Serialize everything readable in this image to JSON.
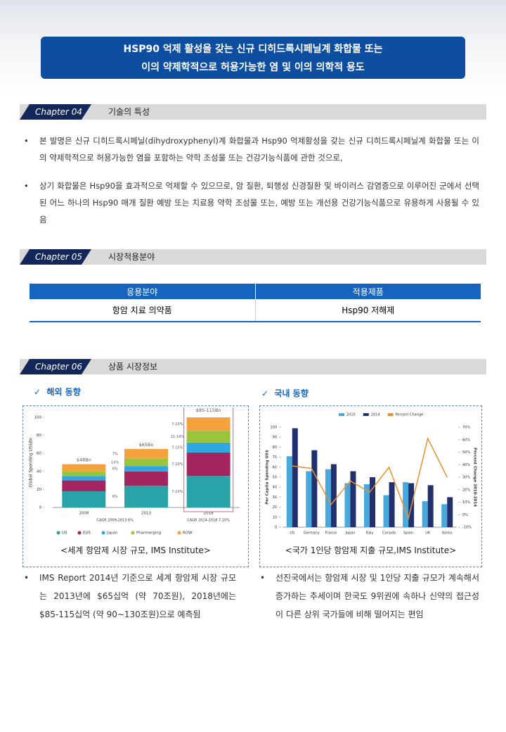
{
  "header": {
    "title": [
      "HSP90 억제 활성을 갖는 신규 디히드록시페닐계 화합물 또는",
      "이의 약제학적으로 허용가능한 염 및 이의 의학적 용도"
    ]
  },
  "sections": [
    {
      "chapter": "Chapter 04",
      "title": "기술의 특성",
      "bullets": [
        "본 발명은 신규 디히드록시페닐(dihydroxyphenyl)계 화합물과 Hsp90 억제활성을 갖는 신규 디히드록시페닐계 화합물 또는 이의 약제학적으로 허용가능한 염을 포함하는 약학 조성물 또는 건강기능식품에 관한 것으로,",
        "상기 화합물은 Hsp90을 효과적으로 억제할 수 있으므로, 암 질환, 퇴행성 신경질환 및 바이러스 감염증으로 이루어진 군에서 선택된 어느 하나의 Hsp90 매개 질환 예방 또는 치료용 약학 조성물 또는, 예방 또는 개선용 건강기능식품으로 유용하게 사용될 수 있음"
      ]
    },
    {
      "chapter": "Chapter 05",
      "title": "시장적용분야",
      "table": {
        "header": [
          "응용분야",
          "적용제품"
        ],
        "rows": [
          [
            "항암 치료 의약품",
            "Hsp90 저해제"
          ]
        ]
      }
    },
    {
      "chapter": "Chapter 06",
      "title": "상품 시장정보",
      "left": {
        "subtitle": "해외 동향",
        "caption": "<세계 항암제 시장 규모, IMS Institute>",
        "bullet": "IMS Report 2014년 기준으로 세계 항암제 시장 규모는 2013년에 $65십억 (약 70조원), 2018년에는 $85-115십억 (약 90~130조원)으로 예측됨"
      },
      "right": {
        "subtitle": "국내 동향",
        "caption": "<국가 1인당 항암제 지출 규모,IMS Institute>",
        "bullet": "선진국에서는 항암제 시장 및 1인당 지출 규모가 계속해서 증가하는 추세이며 한국도 9위권에 속하나 신약의 접근성이 다른 상위 국가들에 비해 떨어지는 편임"
      }
    }
  ],
  "chart_data": [
    {
      "type": "stacked_bar",
      "y_label": "Global Spending US$Bn",
      "categories": [
        "2008",
        "2013",
        "2018"
      ],
      "series": [
        {
          "name": "US",
          "color": "#2aa3a8",
          "values": [
            18,
            24,
            35
          ]
        },
        {
          "name": "EU5",
          "color": "#a3245e",
          "values": [
            12,
            16,
            26
          ]
        },
        {
          "name": "Japan",
          "color": "#2fa8e0",
          "values": [
            5,
            6,
            11
          ]
        },
        {
          "name": "Pharmerging",
          "color": "#9ac43c",
          "values": [
            5,
            8,
            13
          ]
        },
        {
          "name": "ROW",
          "color": "#f4a23e",
          "values": [
            8,
            11,
            15
          ]
        }
      ],
      "ylim": [
        0,
        100
      ],
      "yticks": [
        0,
        20,
        40,
        60,
        80,
        100
      ],
      "annotations": [
        "$48Bn",
        "$65Bn",
        "$85-115Bn",
        "CAGR 2009-2013 6%",
        "CAGR 2014-2018 7-10%"
      ],
      "growth_labels": [
        [
          "6%",
          "",
          "6%",
          "14%",
          "7%"
        ],
        [
          "7-10%",
          "7-10%",
          "7-10%",
          "11-14%",
          "7-10%"
        ]
      ]
    },
    {
      "type": "bar_line",
      "y_label": "Per Capita Spending US$",
      "y2_label": "Percent Change 2010-2014",
      "categories": [
        "US",
        "Germany",
        "France",
        "Japan",
        "Italy",
        "Canada",
        "Spain",
        "UK",
        "Korea"
      ],
      "series": [
        {
          "name": "2010",
          "color": "#4aa9dc",
          "values": [
            71,
            56,
            58,
            44,
            43,
            32,
            45,
            26,
            23
          ]
        },
        {
          "name": "2014",
          "color": "#22306e",
          "values": [
            99,
            77,
            63,
            56,
            50,
            45,
            44,
            42,
            30
          ]
        },
        {
          "name": "Percent Change",
          "color": "#e8912f",
          "axis": "y2",
          "values": [
            39,
            37,
            8,
            27,
            18,
            38,
            -3,
            61,
            30
          ]
        }
      ],
      "ylim": [
        0,
        100
      ],
      "yticks": [
        0,
        10,
        20,
        30,
        40,
        50,
        60,
        70,
        80,
        90,
        100
      ],
      "y2lim": [
        -10,
        70
      ],
      "y2ticks": [
        {
          "value": -10,
          "label": "-10%"
        },
        {
          "value": 0,
          "label": "0%"
        },
        {
          "value": 10,
          "label": "10%"
        },
        {
          "value": 20,
          "label": "20%"
        },
        {
          "value": 30,
          "label": "30%"
        },
        {
          "value": 40,
          "label": "40%"
        },
        {
          "value": 50,
          "label": "50%"
        },
        {
          "value": 60,
          "label": "60%"
        },
        {
          "value": 70,
          "label": "70%"
        }
      ]
    }
  ]
}
